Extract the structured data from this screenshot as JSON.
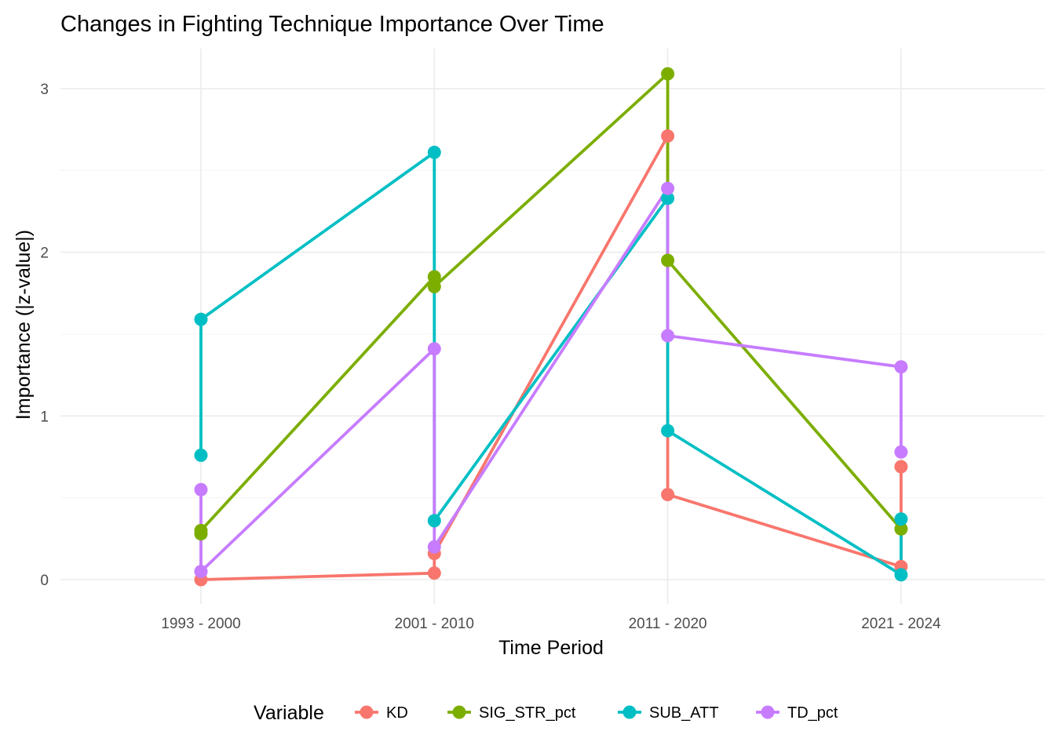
{
  "chart_data": {
    "type": "line",
    "title": "Changes in Fighting Technique Importance Over Time",
    "xlabel": "Time Period",
    "ylabel": "Importance (|z-value|)",
    "categories": [
      "1993 - 2000",
      "2001 - 2010",
      "2011 - 2020",
      "2021 - 2024"
    ],
    "ylim": [
      -0.12,
      3.2
    ],
    "yticks": [
      0,
      1,
      2,
      3
    ],
    "grid": true,
    "legend": {
      "title": "Variable",
      "position": "bottom"
    },
    "series": [
      {
        "name": "KD",
        "color": "#F8766D",
        "points": [
          {
            "x": "1993 - 2000",
            "y": 0.0
          },
          {
            "x": "2001 - 2010",
            "y": 0.04
          },
          {
            "x": "2001 - 2010",
            "y": 0.16
          },
          {
            "x": "2011 - 2020",
            "y": 2.71
          },
          {
            "x": "2011 - 2020",
            "y": 0.52
          },
          {
            "x": "2021 - 2024",
            "y": 0.08
          },
          {
            "x": "2021 - 2024",
            "y": 0.69
          }
        ]
      },
      {
        "name": "SIG_STR_pct",
        "color": "#7CAE00",
        "points": [
          {
            "x": "1993 - 2000",
            "y": 0.28
          },
          {
            "x": "1993 - 2000",
            "y": 0.3
          },
          {
            "x": "2001 - 2010",
            "y": 1.85
          },
          {
            "x": "2001 - 2010",
            "y": 1.79
          },
          {
            "x": "2011 - 2020",
            "y": 3.09
          },
          {
            "x": "2011 - 2020",
            "y": 1.95
          },
          {
            "x": "2021 - 2024",
            "y": 0.31
          }
        ]
      },
      {
        "name": "SUB_ATT",
        "color": "#00BFC4",
        "points": [
          {
            "x": "1993 - 2000",
            "y": 0.76
          },
          {
            "x": "1993 - 2000",
            "y": 1.59
          },
          {
            "x": "2001 - 2010",
            "y": 2.61
          },
          {
            "x": "2001 - 2010",
            "y": 0.36
          },
          {
            "x": "2011 - 2020",
            "y": 2.33
          },
          {
            "x": "2011 - 2020",
            "y": 0.91
          },
          {
            "x": "2021 - 2024",
            "y": 0.03
          },
          {
            "x": "2021 - 2024",
            "y": 0.37
          }
        ]
      },
      {
        "name": "TD_pct",
        "color": "#C77CFF",
        "points": [
          {
            "x": "1993 - 2000",
            "y": 0.55
          },
          {
            "x": "1993 - 2000",
            "y": 0.05
          },
          {
            "x": "2001 - 2010",
            "y": 1.41
          },
          {
            "x": "2001 - 2010",
            "y": 0.2
          },
          {
            "x": "2011 - 2020",
            "y": 2.39
          },
          {
            "x": "2011 - 2020",
            "y": 1.49
          },
          {
            "x": "2021 - 2024",
            "y": 1.3
          },
          {
            "x": "2021 - 2024",
            "y": 0.78
          }
        ]
      }
    ]
  }
}
